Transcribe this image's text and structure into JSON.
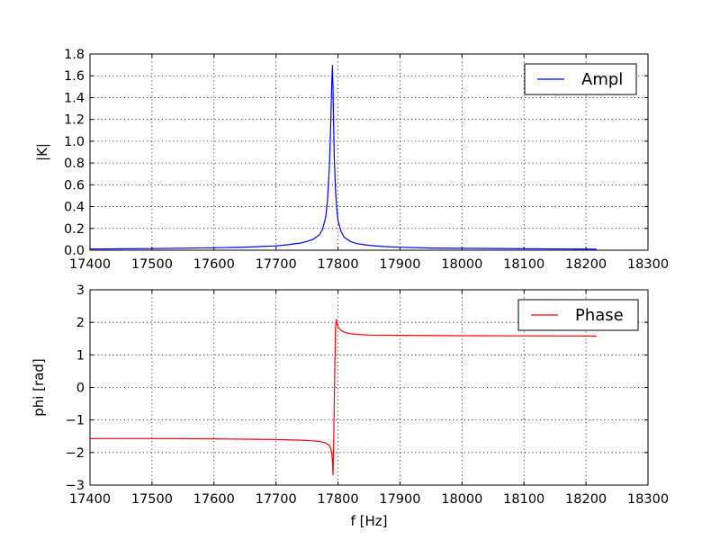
{
  "chart_data": [
    {
      "type": "line",
      "xlabel": "",
      "ylabel": "|K|",
      "xlim": [
        17400,
        18300
      ],
      "ylim": [
        0,
        1.8
      ],
      "x_ticks": [
        17400,
        17500,
        17600,
        17700,
        17800,
        17900,
        18000,
        18100,
        18200,
        18300
      ],
      "y_ticks": [
        "0.0",
        "0.2",
        "0.4",
        "0.6",
        "0.8",
        "1.0",
        "1.2",
        "1.4",
        "1.6",
        "1.8"
      ],
      "grid": true,
      "legend_position": "top-right",
      "series": [
        {
          "name": "Ampl",
          "color": "#0000ff",
          "x": [
            17400,
            17500,
            17600,
            17650,
            17700,
            17720,
            17740,
            17750,
            17760,
            17770,
            17775,
            17780,
            17783,
            17786,
            17788,
            17790,
            17791,
            17792,
            17793,
            17794,
            17796,
            17798,
            17800,
            17805,
            17810,
            17820,
            17830,
            17850,
            17875,
            17900,
            17950,
            18000,
            18100,
            18217
          ],
          "y": [
            0.011,
            0.015,
            0.022,
            0.028,
            0.04,
            0.05,
            0.066,
            0.08,
            0.1,
            0.14,
            0.19,
            0.3,
            0.45,
            0.75,
            1.1,
            1.55,
            1.7,
            1.5,
            1.15,
            0.85,
            0.55,
            0.38,
            0.27,
            0.17,
            0.12,
            0.08,
            0.06,
            0.045,
            0.033,
            0.027,
            0.02,
            0.017,
            0.013,
            0.01
          ]
        }
      ]
    },
    {
      "type": "line",
      "xlabel": "f [Hz]",
      "ylabel": "phi [rad]",
      "xlim": [
        17400,
        18300
      ],
      "ylim": [
        -3,
        3
      ],
      "x_ticks": [
        17400,
        17500,
        17600,
        17700,
        17800,
        17900,
        18000,
        18100,
        18200,
        18300
      ],
      "y_ticks": [
        "−3",
        "−2",
        "−1",
        "0",
        "1",
        "2",
        "3"
      ],
      "grid": true,
      "legend_position": "top-right",
      "series": [
        {
          "name": "Phase",
          "color": "#ff0000",
          "x": [
            17400,
            17500,
            17600,
            17650,
            17700,
            17740,
            17760,
            17770,
            17775,
            17780,
            17785,
            17788,
            17790,
            17791,
            17792,
            17793,
            17794,
            17795,
            17796,
            17797,
            17798,
            17800,
            17805,
            17810,
            17820,
            17830,
            17850,
            17900,
            18000,
            18100,
            18217
          ],
          "y": [
            -1.57,
            -1.57,
            -1.58,
            -1.59,
            -1.6,
            -1.62,
            -1.64,
            -1.66,
            -1.68,
            -1.71,
            -1.76,
            -1.85,
            -2.05,
            -2.3,
            -2.7,
            -1.8,
            -0.5,
            0.8,
            1.8,
            2.1,
            2.0,
            1.85,
            1.75,
            1.7,
            1.65,
            1.63,
            1.61,
            1.6,
            1.59,
            1.585,
            1.58
          ]
        }
      ]
    }
  ]
}
